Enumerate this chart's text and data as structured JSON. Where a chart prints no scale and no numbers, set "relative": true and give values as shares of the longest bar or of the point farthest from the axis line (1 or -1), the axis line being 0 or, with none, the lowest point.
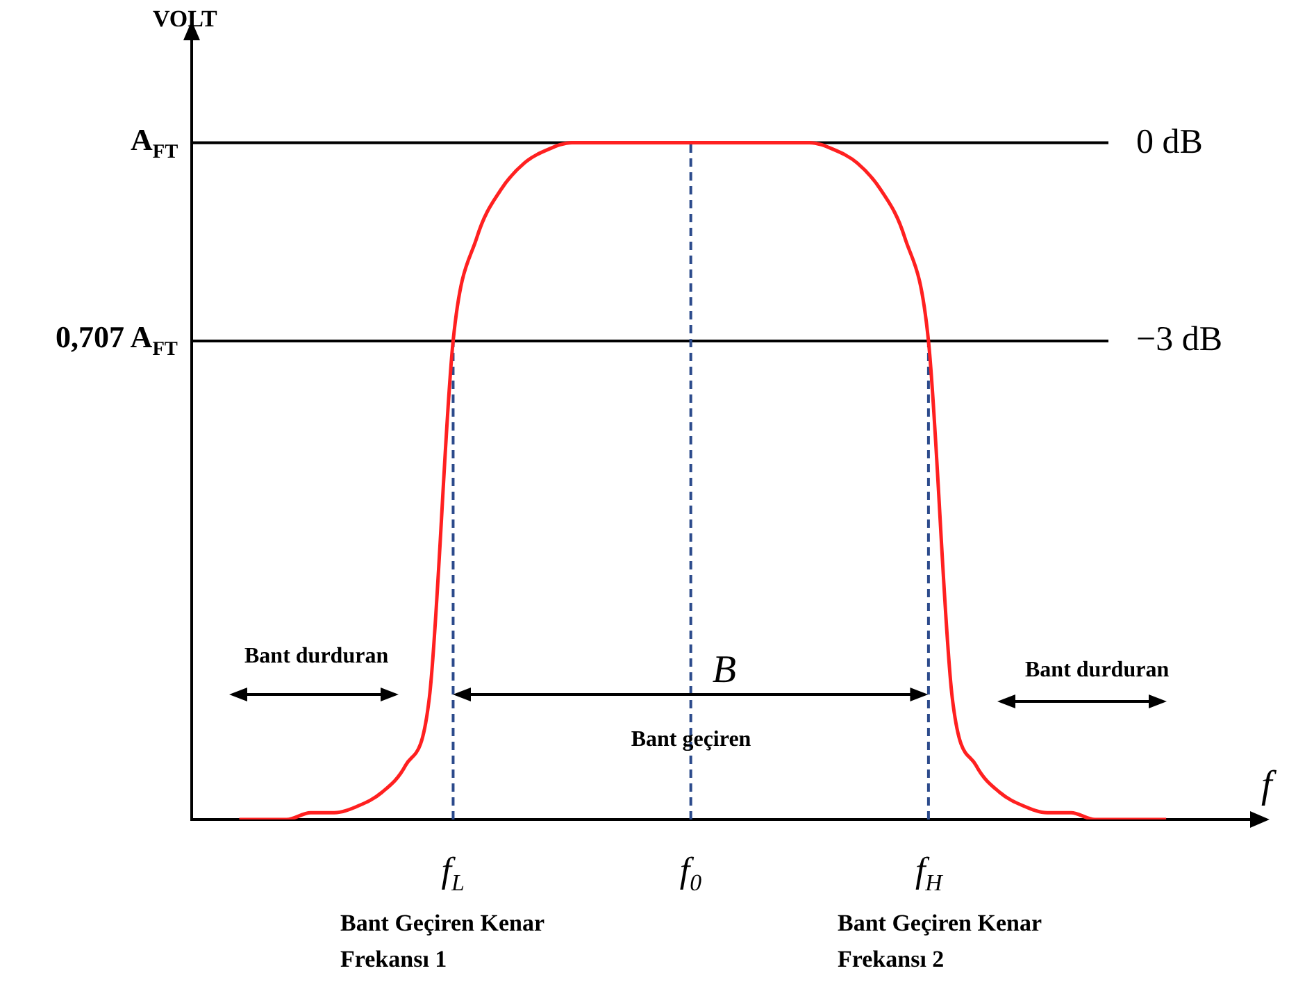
{
  "chart_data": {
    "type": "line",
    "relative": true,
    "xlabel": "f",
    "ylabel": "VOLT",
    "categories": [
      null,
      null,
      null,
      null,
      null,
      null,
      null,
      null,
      null,
      null,
      null,
      "f$_{L}$",
      null,
      null,
      null,
      null,
      null,
      null,
      null,
      null,
      null,
      "f$_{0}$",
      null,
      null,
      null,
      null,
      null,
      null,
      null,
      null,
      null,
      "f$_{H}$",
      null,
      null,
      null,
      null,
      null,
      null,
      null,
      null,
      null,
      null,
      null,
      null,
      null,
      null
    ],
    "series": [
      {
        "color": "#ff2020",
        "values": [
          null,
          null,
          0,
          0,
          0,
          0.01,
          0.01,
          0.02,
          0.04,
          0.08,
          0.18,
          0.707,
          0.86,
          0.93,
          0.97,
          0.99,
          1,
          1,
          1,
          1,
          1,
          1,
          1,
          1,
          1,
          1,
          1,
          0.99,
          0.97,
          0.93,
          0.86,
          0.707,
          0.18,
          0.08,
          0.04,
          0.02,
          0.01,
          0.01,
          0,
          0,
          0,
          0,
          null,
          null,
          null,
          null
        ]
      }
    ],
    "ref_lines": [
      {
        "axis": "y",
        "value": 1,
        "label": "0 dB",
        "color": "#000000"
      },
      {
        "axis": "y",
        "value": 0.707,
        "label": "−3 dB",
        "color": "#000000"
      },
      {
        "axis": "x",
        "value": "f$_{L}$",
        "color": "#2b4a8b",
        "line_style": "dashed"
      },
      {
        "axis": "x",
        "value": "f$_{0}$",
        "color": "#2b4a8b",
        "line_style": "dashed"
      },
      {
        "axis": "x",
        "value": "f$_{H}$",
        "color": "#2b4a8b",
        "line_style": "dashed"
      }
    ],
    "annotations": [
      "A$_{FT}$",
      "0,707 A$_{FT}$",
      "B",
      "Bant geçiren",
      "Bant durduran",
      "Bant durduran",
      "Bant Geçiren Kenar Frekansı 1",
      "Bant Geçiren  Kenar Frekansı 2"
    ],
    "grid": false,
    "legend": false,
    "marker": "none",
    "line_style": "solid"
  }
}
